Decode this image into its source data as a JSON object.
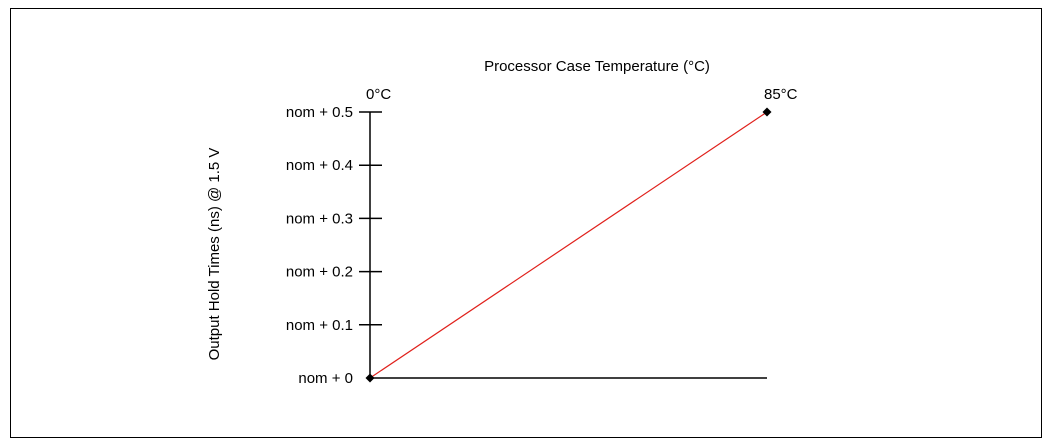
{
  "chart_data": {
    "type": "line",
    "title": "Processor Case Temperature (°C)",
    "ylabel": "Output Hold Times (ns) @ 1.5 V",
    "xlabel": "",
    "x_start_label": "0°C",
    "x_end_label": "85°C",
    "x": [
      0,
      85
    ],
    "xlim": [
      0,
      85
    ],
    "ylim": [
      0,
      0.5
    ],
    "y_tick_values": [
      0,
      0.1,
      0.2,
      0.3,
      0.4,
      0.5
    ],
    "y_tick_labels": [
      "nom + 0",
      "nom + 0.1",
      "nom + 0.2",
      "nom + 0.3",
      "nom + 0.4",
      "nom + 0.5"
    ],
    "series": [
      {
        "values": [
          0,
          0.5
        ],
        "color": "#e0201b"
      }
    ],
    "grid": false,
    "axis_color": "#000000"
  }
}
